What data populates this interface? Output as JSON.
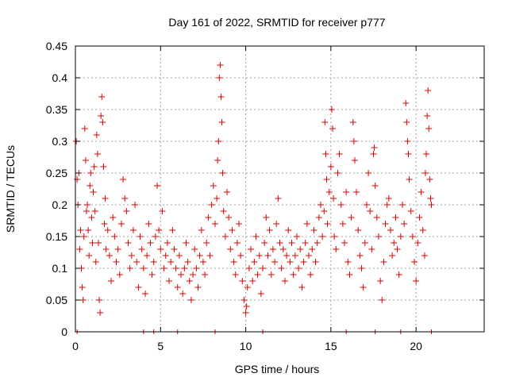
{
  "chart_data": {
    "type": "scatter",
    "title": "Day 161 of 2022, SRMTID for receiver p777",
    "xlabel": "GPS time / hours",
    "ylabel": "SRMTID / TECUs",
    "xlim": [
      0,
      24
    ],
    "ylim": [
      0,
      0.45
    ],
    "x_ticks": [
      0,
      5,
      10,
      15,
      20
    ],
    "x_tick_labels": [
      "0",
      "5",
      "10",
      "15",
      "20"
    ],
    "y_ticks": [
      0,
      0.05,
      0.1,
      0.15,
      0.2,
      0.25,
      0.3,
      0.35,
      0.4,
      0.45
    ],
    "y_tick_labels": [
      "0",
      "0.05",
      "0.1",
      "0.15",
      "0.2",
      "0.25",
      "0.3",
      "0.35",
      "0.4",
      "0.45"
    ],
    "grid": true,
    "marker": "+",
    "color": "#e00000",
    "series": [
      {
        "name": "SRMTID",
        "points": [
          [
            0.05,
            0.3
          ],
          [
            0.1,
            0.24
          ],
          [
            0.15,
            0.2
          ],
          [
            0.2,
            0.25
          ],
          [
            0.25,
            0.13
          ],
          [
            0.3,
            0.16
          ],
          [
            0.35,
            0.1
          ],
          [
            0.4,
            0.07
          ],
          [
            0.45,
            0.05
          ],
          [
            0.5,
            0.15
          ],
          [
            0.55,
            0.32
          ],
          [
            0.6,
            0.27
          ],
          [
            0.65,
            0.19
          ],
          [
            0.7,
            0.2
          ],
          [
            0.75,
            0.16
          ],
          [
            0.8,
            0.12
          ],
          [
            0.85,
            0.23
          ],
          [
            0.9,
            0.25
          ],
          [
            0.95,
            0.18
          ],
          [
            1.0,
            0.14
          ],
          [
            1.05,
            0.22
          ],
          [
            1.1,
            0.26
          ],
          [
            1.15,
            0.19
          ],
          [
            1.2,
            0.11
          ],
          [
            1.25,
            0.31
          ],
          [
            1.3,
            0.28
          ],
          [
            1.35,
            0.14
          ],
          [
            1.4,
            0.05
          ],
          [
            1.45,
            0.03
          ],
          [
            1.5,
            0.34
          ],
          [
            1.55,
            0.37
          ],
          [
            1.6,
            0.33
          ],
          [
            1.65,
            0.26
          ],
          [
            1.7,
            0.17
          ],
          [
            1.75,
            0.21
          ],
          [
            1.8,
            0.13
          ],
          [
            1.9,
            0.16
          ],
          [
            2.0,
            0.12
          ],
          [
            2.1,
            0.08
          ],
          [
            2.2,
            0.18
          ],
          [
            2.3,
            0.15
          ],
          [
            2.4,
            0.11
          ],
          [
            2.5,
            0.13
          ],
          [
            2.6,
            0.09
          ],
          [
            2.7,
            0.17
          ],
          [
            2.8,
            0.24
          ],
          [
            2.9,
            0.21
          ],
          [
            3.0,
            0.19
          ],
          [
            3.1,
            0.14
          ],
          [
            3.2,
            0.1
          ],
          [
            3.3,
            0.12
          ],
          [
            3.4,
            0.16
          ],
          [
            3.5,
            0.2
          ],
          [
            3.6,
            0.11
          ],
          [
            3.7,
            0.07
          ],
          [
            3.8,
            0.15
          ],
          [
            3.9,
            0.13
          ],
          [
            4.0,
            0.1
          ],
          [
            4.1,
            0.06
          ],
          [
            4.2,
            0.12
          ],
          [
            4.3,
            0.17
          ],
          [
            4.4,
            0.14
          ],
          [
            4.5,
            0.09
          ],
          [
            4.6,
            0.11
          ],
          [
            4.7,
            0.15
          ],
          [
            4.8,
            0.23
          ],
          [
            4.9,
            0.16
          ],
          [
            5.0,
            0.13
          ],
          [
            5.1,
            0.19
          ],
          [
            5.2,
            0.1
          ],
          [
            5.3,
            0.12
          ],
          [
            5.4,
            0.14
          ],
          [
            5.5,
            0.08
          ],
          [
            5.6,
            0.11
          ],
          [
            5.7,
            0.16
          ],
          [
            5.8,
            0.13
          ],
          [
            5.9,
            0.1
          ],
          [
            6.0,
            0.07
          ],
          [
            6.1,
            0.12
          ],
          [
            6.2,
            0.09
          ],
          [
            6.3,
            0.06
          ],
          [
            6.4,
            0.1
          ],
          [
            6.5,
            0.14
          ],
          [
            6.6,
            0.11
          ],
          [
            6.7,
            0.08
          ],
          [
            6.8,
            0.05
          ],
          [
            6.9,
            0.09
          ],
          [
            7.0,
            0.13
          ],
          [
            7.1,
            0.1
          ],
          [
            7.2,
            0.07
          ],
          [
            7.3,
            0.12
          ],
          [
            7.4,
            0.16
          ],
          [
            7.5,
            0.11
          ],
          [
            7.6,
            0.09
          ],
          [
            7.7,
            0.14
          ],
          [
            7.8,
            0.18
          ],
          [
            7.9,
            0.12
          ],
          [
            8.0,
            0.2
          ],
          [
            8.1,
            0.23
          ],
          [
            8.2,
            0.17
          ],
          [
            8.3,
            0.21
          ],
          [
            8.35,
            0.27
          ],
          [
            8.4,
            0.3
          ],
          [
            8.45,
            0.4
          ],
          [
            8.5,
            0.42
          ],
          [
            8.55,
            0.37
          ],
          [
            8.6,
            0.33
          ],
          [
            8.65,
            0.25
          ],
          [
            8.7,
            0.19
          ],
          [
            8.8,
            0.15
          ],
          [
            8.9,
            0.22
          ],
          [
            9.0,
            0.18
          ],
          [
            9.1,
            0.13
          ],
          [
            9.2,
            0.16
          ],
          [
            9.3,
            0.11
          ],
          [
            9.4,
            0.09
          ],
          [
            9.5,
            0.14
          ],
          [
            9.6,
            0.17
          ],
          [
            9.7,
            0.12
          ],
          [
            9.8,
            0.08
          ],
          [
            9.9,
            0.05
          ],
          [
            10.0,
            0.03
          ],
          [
            10.05,
            0.04
          ],
          [
            10.1,
            0.07
          ],
          [
            10.2,
            0.1
          ],
          [
            10.3,
            0.13
          ],
          [
            10.4,
            0.08
          ],
          [
            10.5,
            0.11
          ],
          [
            10.6,
            0.15
          ],
          [
            10.7,
            0.09
          ],
          [
            10.8,
            0.12
          ],
          [
            10.9,
            0.06
          ],
          [
            11.0,
            0.1
          ],
          [
            11.1,
            0.14
          ],
          [
            11.2,
            0.18
          ],
          [
            11.3,
            0.12
          ],
          [
            11.4,
            0.16
          ],
          [
            11.5,
            0.09
          ],
          [
            11.6,
            0.13
          ],
          [
            11.7,
            0.11
          ],
          [
            11.8,
            0.17
          ],
          [
            11.9,
            0.21
          ],
          [
            12.0,
            0.14
          ],
          [
            12.1,
            0.1
          ],
          [
            12.2,
            0.13
          ],
          [
            12.3,
            0.08
          ],
          [
            12.4,
            0.12
          ],
          [
            12.5,
            0.16
          ],
          [
            12.6,
            0.11
          ],
          [
            12.7,
            0.14
          ],
          [
            12.8,
            0.09
          ],
          [
            12.9,
            0.12
          ],
          [
            13.0,
            0.15
          ],
          [
            13.1,
            0.1
          ],
          [
            13.2,
            0.13
          ],
          [
            13.3,
            0.07
          ],
          [
            13.4,
            0.11
          ],
          [
            13.5,
            0.14
          ],
          [
            13.6,
            0.17
          ],
          [
            13.7,
            0.12
          ],
          [
            13.8,
            0.09
          ],
          [
            13.9,
            0.13
          ],
          [
            14.0,
            0.16
          ],
          [
            14.1,
            0.11
          ],
          [
            14.2,
            0.14
          ],
          [
            14.3,
            0.18
          ],
          [
            14.4,
            0.2
          ],
          [
            14.5,
            0.15
          ],
          [
            14.6,
            0.19
          ],
          [
            14.65,
            0.33
          ],
          [
            14.7,
            0.28
          ],
          [
            14.75,
            0.24
          ],
          [
            14.8,
            0.17
          ],
          [
            14.9,
            0.22
          ],
          [
            15.0,
            0.26
          ],
          [
            15.05,
            0.35
          ],
          [
            15.1,
            0.32
          ],
          [
            15.15,
            0.21
          ],
          [
            15.2,
            0.15
          ],
          [
            15.3,
            0.13
          ],
          [
            15.4,
            0.25
          ],
          [
            15.5,
            0.28
          ],
          [
            15.6,
            0.2
          ],
          [
            15.7,
            0.17
          ],
          [
            15.8,
            0.14
          ],
          [
            15.9,
            0.22
          ],
          [
            16.0,
            0.11
          ],
          [
            16.1,
            0.09
          ],
          [
            16.2,
            0.18
          ],
          [
            16.3,
            0.33
          ],
          [
            16.35,
            0.3
          ],
          [
            16.4,
            0.27
          ],
          [
            16.5,
            0.22
          ],
          [
            16.6,
            0.16
          ],
          [
            16.7,
            0.12
          ],
          [
            16.8,
            0.1
          ],
          [
            16.9,
            0.07
          ],
          [
            17.0,
            0.14
          ],
          [
            17.1,
            0.2
          ],
          [
            17.2,
            0.25
          ],
          [
            17.3,
            0.19
          ],
          [
            17.4,
            0.13
          ],
          [
            17.5,
            0.28
          ],
          [
            17.55,
            0.29
          ],
          [
            17.6,
            0.23
          ],
          [
            17.7,
            0.18
          ],
          [
            17.8,
            0.15
          ],
          [
            17.9,
            0.08
          ],
          [
            18.0,
            0.05
          ],
          [
            18.1,
            0.11
          ],
          [
            18.2,
            0.17
          ],
          [
            18.3,
            0.2
          ],
          [
            18.4,
            0.21
          ],
          [
            18.5,
            0.16
          ],
          [
            18.6,
            0.12
          ],
          [
            18.7,
            0.14
          ],
          [
            18.8,
            0.18
          ],
          [
            18.9,
            0.13
          ],
          [
            19.0,
            0.09
          ],
          [
            19.1,
            0.15
          ],
          [
            19.2,
            0.2
          ],
          [
            19.3,
            0.17
          ],
          [
            19.4,
            0.36
          ],
          [
            19.45,
            0.33
          ],
          [
            19.5,
            0.3
          ],
          [
            19.55,
            0.28
          ],
          [
            19.6,
            0.24
          ],
          [
            19.7,
            0.19
          ],
          [
            19.8,
            0.15
          ],
          [
            19.9,
            0.11
          ],
          [
            20.0,
            0.08
          ],
          [
            20.1,
            0.14
          ],
          [
            20.2,
            0.18
          ],
          [
            20.3,
            0.22
          ],
          [
            20.4,
            0.16
          ],
          [
            20.5,
            0.12
          ],
          [
            20.55,
            0.25
          ],
          [
            20.6,
            0.28
          ],
          [
            20.65,
            0.34
          ],
          [
            20.7,
            0.38
          ],
          [
            20.75,
            0.32
          ],
          [
            20.8,
            0.24
          ],
          [
            20.85,
            0.21
          ],
          [
            20.9,
            0.2
          ]
        ]
      }
    ],
    "zero_points_x": [
      0.1,
      4.0,
      4.6,
      6.0,
      8.2,
      11.0,
      15.9,
      17.6,
      19.1,
      20.9
    ]
  }
}
